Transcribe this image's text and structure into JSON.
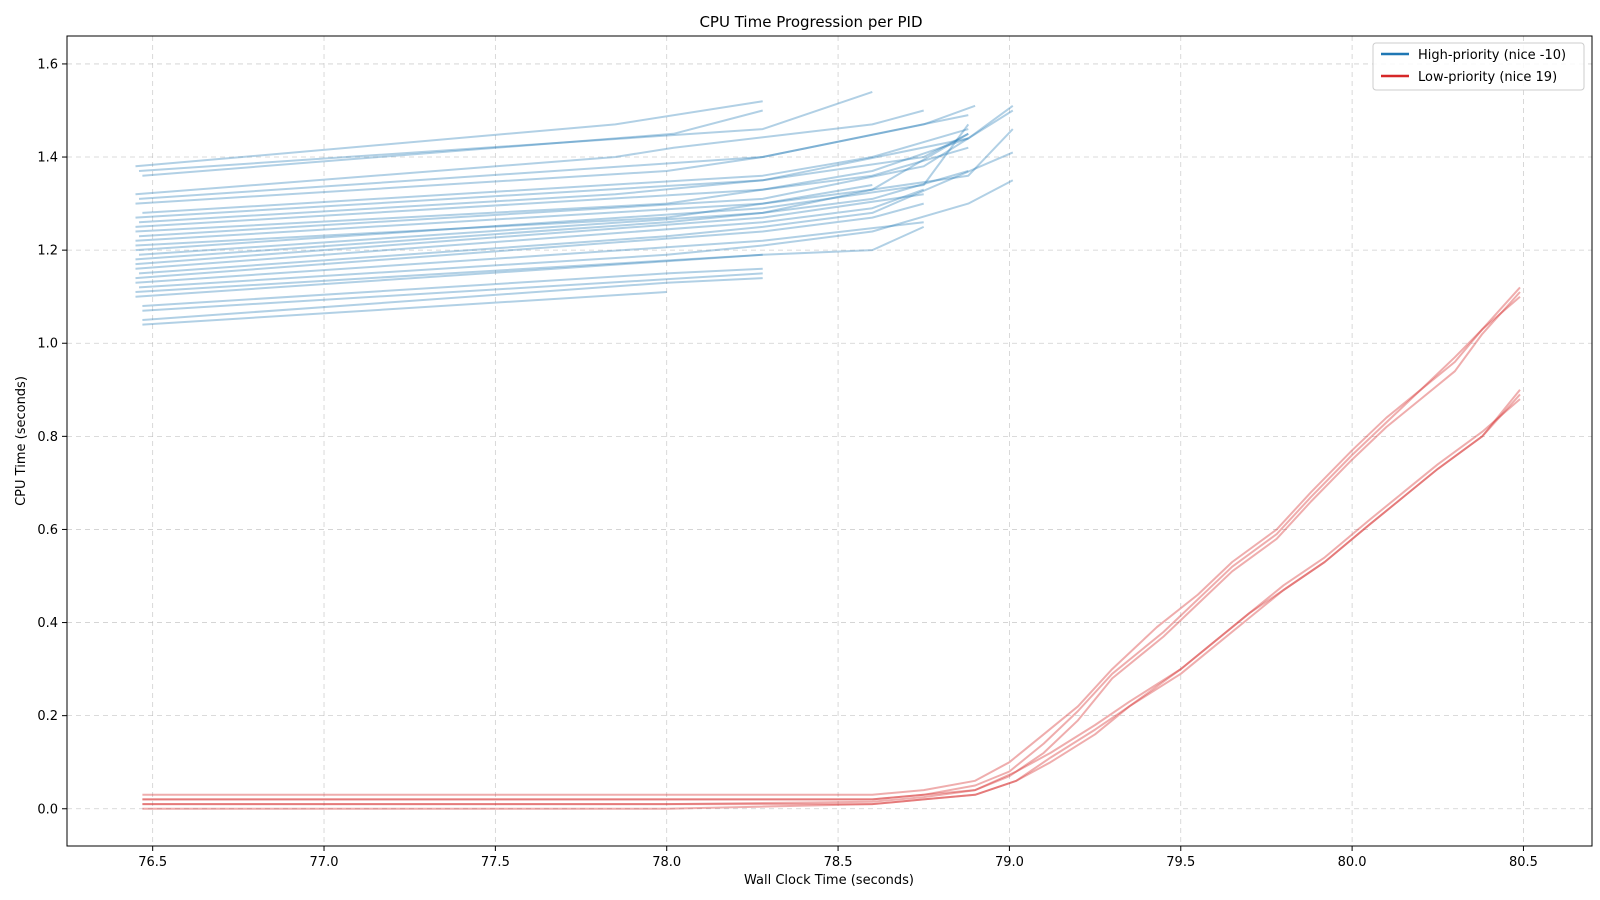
{
  "chart_data": {
    "type": "line",
    "title": "CPU Time Progression per PID",
    "xlabel": "Wall Clock Time (seconds)",
    "ylabel": "CPU Time (seconds)",
    "xlim": [
      76.25,
      80.7
    ],
    "ylim": [
      -0.08,
      1.66
    ],
    "xticks": [
      "76.5",
      "77.0",
      "77.5",
      "78.0",
      "78.5",
      "79.0",
      "79.5",
      "80.0",
      "80.5"
    ],
    "yticks": [
      "0.0",
      "0.2",
      "0.4",
      "0.6",
      "0.8",
      "1.0",
      "1.2",
      "1.4",
      "1.6"
    ],
    "grid": true,
    "legend_position": "top-right",
    "legend": [
      {
        "label": "High-priority (nice -10)",
        "color": "#1f77b4"
      },
      {
        "label": "Low-priority (nice 19)",
        "color": "#d62728"
      }
    ],
    "series_groups": [
      {
        "group": "High-priority (nice -10)",
        "color": "#1f77b4",
        "series": [
          {
            "x": [
              76.45,
              77.85,
              78.28
            ],
            "y": [
              1.38,
              1.47,
              1.52
            ]
          },
          {
            "x": [
              76.46,
              78.28,
              78.6
            ],
            "y": [
              1.37,
              1.46,
              1.54
            ]
          },
          {
            "x": [
              76.47,
              78.02,
              78.28
            ],
            "y": [
              1.36,
              1.45,
              1.5
            ]
          },
          {
            "x": [
              76.45,
              77.85,
              78.02,
              78.6,
              78.75
            ],
            "y": [
              1.32,
              1.4,
              1.42,
              1.47,
              1.5
            ]
          },
          {
            "x": [
              76.46,
              78.28,
              78.75,
              78.9
            ],
            "y": [
              1.31,
              1.4,
              1.47,
              1.51
            ]
          },
          {
            "x": [
              76.45,
              78.0,
              78.28,
              78.88
            ],
            "y": [
              1.3,
              1.37,
              1.4,
              1.49
            ]
          },
          {
            "x": [
              76.47,
              78.28,
              78.6,
              78.88
            ],
            "y": [
              1.28,
              1.36,
              1.4,
              1.46
            ]
          },
          {
            "x": [
              76.45,
              78.28,
              78.88,
              79.01
            ],
            "y": [
              1.27,
              1.35,
              1.44,
              1.51
            ]
          },
          {
            "x": [
              76.46,
              77.85,
              78.28,
              78.75,
              78.88
            ],
            "y": [
              1.26,
              1.32,
              1.35,
              1.4,
              1.45
            ]
          },
          {
            "x": [
              76.45,
              78.28,
              78.6,
              78.88
            ],
            "y": [
              1.25,
              1.33,
              1.36,
              1.42
            ]
          },
          {
            "x": [
              76.45,
              78.0,
              78.28,
              78.6,
              78.88
            ],
            "y": [
              1.24,
              1.3,
              1.33,
              1.37,
              1.44
            ]
          },
          {
            "x": [
              76.46,
              78.28,
              78.75,
              79.01
            ],
            "y": [
              1.23,
              1.31,
              1.38,
              1.5
            ]
          },
          {
            "x": [
              76.45,
              78.28,
              78.6,
              78.88
            ],
            "y": [
              1.22,
              1.3,
              1.33,
              1.45
            ]
          },
          {
            "x": [
              76.45,
              78.0,
              78.28,
              78.6
            ],
            "y": [
              1.21,
              1.27,
              1.3,
              1.34
            ]
          },
          {
            "x": [
              76.45,
              78.28,
              78.75,
              78.88
            ],
            "y": [
              1.2,
              1.29,
              1.34,
              1.47
            ]
          },
          {
            "x": [
              76.46,
              78.28,
              78.6,
              78.88
            ],
            "y": [
              1.19,
              1.28,
              1.31,
              1.37
            ]
          },
          {
            "x": [
              76.45,
              78.0,
              78.28,
              78.6,
              78.88,
              79.01
            ],
            "y": [
              1.18,
              1.26,
              1.28,
              1.33,
              1.36,
              1.46
            ]
          },
          {
            "x": [
              76.45,
              78.28,
              78.75
            ],
            "y": [
              1.17,
              1.27,
              1.32
            ]
          },
          {
            "x": [
              76.45,
              78.28,
              78.6,
              78.75
            ],
            "y": [
              1.16,
              1.26,
              1.29,
              1.33
            ]
          },
          {
            "x": [
              76.46,
              78.0,
              78.28,
              78.6,
              79.01
            ],
            "y": [
              1.15,
              1.23,
              1.25,
              1.28,
              1.41
            ]
          },
          {
            "x": [
              76.45,
              78.28,
              78.6,
              78.75
            ],
            "y": [
              1.14,
              1.24,
              1.27,
              1.3
            ]
          },
          {
            "x": [
              76.45,
              78.28,
              78.75
            ],
            "y": [
              1.13,
              1.22,
              1.26
            ]
          },
          {
            "x": [
              76.46,
              78.0,
              78.28,
              78.6,
              78.88,
              79.01
            ],
            "y": [
              1.12,
              1.19,
              1.21,
              1.24,
              1.3,
              1.35
            ]
          },
          {
            "x": [
              76.45,
              78.28,
              78.6,
              78.75
            ],
            "y": [
              1.11,
              1.19,
              1.2,
              1.25
            ]
          },
          {
            "x": [
              76.45,
              78.28
            ],
            "y": [
              1.1,
              1.19
            ]
          },
          {
            "x": [
              76.47,
              78.0,
              78.28
            ],
            "y": [
              1.08,
              1.15,
              1.16
            ]
          },
          {
            "x": [
              76.47,
              78.28
            ],
            "y": [
              1.07,
              1.15
            ]
          },
          {
            "x": [
              76.47,
              78.0,
              78.28
            ],
            "y": [
              1.05,
              1.13,
              1.14
            ]
          },
          {
            "x": [
              76.47,
              78.0
            ],
            "y": [
              1.04,
              1.11
            ]
          }
        ]
      },
      {
        "group": "Low-priority (nice 19)",
        "color": "#d62728",
        "series": [
          {
            "x": [
              76.47,
              78.0,
              78.6,
              78.75,
              78.9,
              79.0,
              79.1,
              79.2,
              79.3,
              79.43,
              79.55,
              79.65,
              79.78,
              79.88,
              80.0,
              80.1,
              80.2,
              80.3,
              80.38,
              80.49
            ],
            "y": [
              0.03,
              0.03,
              0.03,
              0.04,
              0.06,
              0.1,
              0.16,
              0.22,
              0.3,
              0.39,
              0.46,
              0.53,
              0.6,
              0.68,
              0.77,
              0.84,
              0.9,
              0.96,
              1.03,
              1.12
            ]
          },
          {
            "x": [
              76.47,
              78.0,
              78.6,
              78.75,
              78.9,
              79.0,
              79.1,
              79.2,
              79.3,
              79.45,
              79.55,
              79.65,
              79.78,
              79.88,
              80.0,
              80.1,
              80.2,
              80.3,
              80.38,
              80.49
            ],
            "y": [
              0.02,
              0.02,
              0.02,
              0.03,
              0.05,
              0.08,
              0.14,
              0.21,
              0.29,
              0.38,
              0.45,
              0.52,
              0.59,
              0.67,
              0.76,
              0.83,
              0.9,
              0.97,
              1.03,
              1.1
            ]
          },
          {
            "x": [
              76.47,
              78.0,
              78.6,
              78.75,
              78.9,
              79.0,
              79.1,
              79.2,
              79.3,
              79.45,
              79.55,
              79.65,
              79.78,
              79.88,
              80.0,
              80.1,
              80.2,
              80.3,
              80.38,
              80.49
            ],
            "y": [
              0.01,
              0.01,
              0.015,
              0.025,
              0.04,
              0.07,
              0.12,
              0.19,
              0.28,
              0.37,
              0.44,
              0.51,
              0.58,
              0.66,
              0.75,
              0.82,
              0.88,
              0.94,
              1.02,
              1.11
            ]
          },
          {
            "x": [
              76.47,
              78.0,
              78.6,
              78.75,
              78.9,
              79.02,
              79.12,
              79.25,
              79.35,
              79.5,
              79.6,
              79.7,
              79.8,
              79.92,
              80.05,
              80.15,
              80.25,
              80.38,
              80.49
            ],
            "y": [
              0.02,
              0.02,
              0.02,
              0.03,
              0.04,
              0.08,
              0.12,
              0.18,
              0.23,
              0.3,
              0.36,
              0.42,
              0.47,
              0.53,
              0.61,
              0.67,
              0.73,
              0.8,
              0.9
            ]
          },
          {
            "x": [
              76.47,
              78.0,
              78.6,
              78.75,
              78.9,
              79.02,
              79.12,
              79.25,
              79.35,
              79.5,
              79.6,
              79.7,
              79.8,
              79.92,
              80.05,
              80.15,
              80.25,
              80.38,
              80.49
            ],
            "y": [
              0.01,
              0.01,
              0.01,
              0.02,
              0.03,
              0.06,
              0.11,
              0.17,
              0.22,
              0.29,
              0.35,
              0.41,
              0.47,
              0.53,
              0.61,
              0.67,
              0.73,
              0.8,
              0.89
            ]
          },
          {
            "x": [
              76.47,
              78.0,
              78.6,
              78.75,
              78.9,
              79.02,
              79.12,
              79.25,
              79.35,
              79.5,
              79.6,
              79.7,
              79.8,
              79.92,
              80.05,
              80.15,
              80.25,
              80.38,
              80.49
            ],
            "y": [
              0.0,
              0.0,
              0.01,
              0.02,
              0.03,
              0.06,
              0.1,
              0.16,
              0.22,
              0.3,
              0.36,
              0.42,
              0.48,
              0.54,
              0.62,
              0.68,
              0.74,
              0.81,
              0.88
            ]
          }
        ]
      }
    ]
  }
}
